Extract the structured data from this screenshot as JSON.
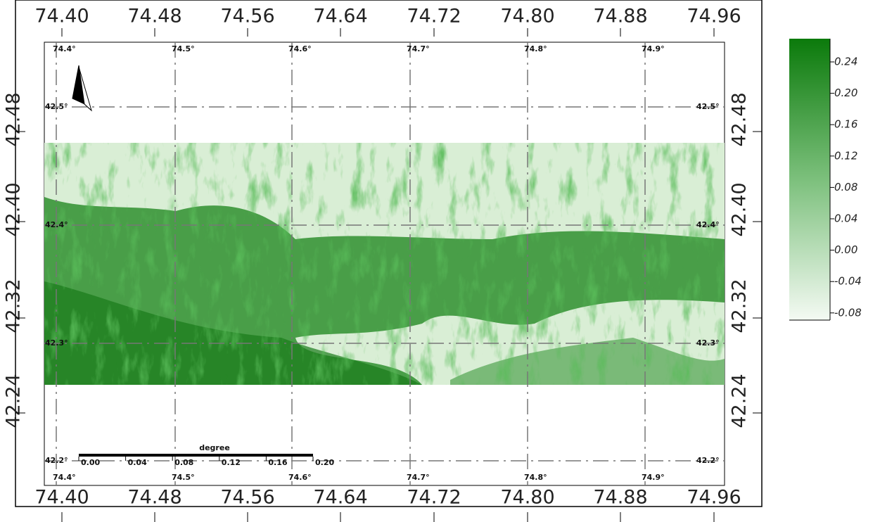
{
  "frame": {
    "top_labels": [
      "74.40",
      "74.48",
      "74.56",
      "74.64",
      "74.72",
      "74.80",
      "74.88",
      "74.96"
    ],
    "bottom_labels": [
      "74.40",
      "74.48",
      "74.56",
      "74.64",
      "74.72",
      "74.80",
      "74.88",
      "74.96"
    ],
    "left_labels": [
      "42.48",
      "42.40",
      "42.32",
      "42.24"
    ],
    "right_labels": [
      "42.48",
      "42.40",
      "42.32",
      "42.24"
    ]
  },
  "graticule": {
    "top_labels": [
      "74.4°",
      "74.5°",
      "74.6°",
      "74.7°",
      "74.8°",
      "74.9°"
    ],
    "bottom_labels": [
      "74.4°",
      "74.5°",
      "74.6°",
      "74.7°",
      "74.8°",
      "74.9°"
    ],
    "left_labels": [
      "42.5°",
      "42.4°",
      "42.3°",
      "42.2°"
    ],
    "right_labels": [
      "42.5°",
      "42.4°",
      "42.3°",
      "42.2°"
    ]
  },
  "scale_bar": {
    "unit": "degree",
    "labels": [
      "0.00",
      "0.04",
      "0.08",
      "0.12",
      "0.16",
      "0.20"
    ]
  },
  "colorbar": {
    "labels": [
      "0.24",
      "0.20",
      "0.16",
      "0.12",
      "0.08",
      "0.04",
      "0.00",
      "-0.04",
      "-0.08"
    ]
  }
}
